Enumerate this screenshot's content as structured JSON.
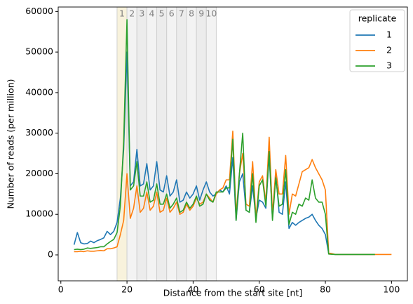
{
  "chart_data": {
    "type": "line",
    "xlabel": "Distance from the start site [nt]",
    "ylabel": "Number of reads (per million)",
    "xlim": [
      -0.8,
      104.8
    ],
    "ylim": [
      -6400,
      61100
    ],
    "xticks": [
      0,
      20,
      40,
      60,
      80,
      100
    ],
    "yticks": [
      0,
      10000,
      20000,
      30000,
      40000,
      50000,
      60000
    ],
    "grid": false,
    "legend": {
      "title": "replicate",
      "loc": "upper right"
    },
    "bands": [
      {
        "label": "1",
        "start": 17,
        "end": 20,
        "color": "#f8f2dc"
      },
      {
        "label": "2",
        "start": 20,
        "end": 23,
        "color": "#f3f3f3"
      },
      {
        "label": "3",
        "start": 23,
        "end": 26,
        "color": "#ececec"
      },
      {
        "label": "4",
        "start": 26,
        "end": 29,
        "color": "#f3f3f3"
      },
      {
        "label": "5",
        "start": 29,
        "end": 32,
        "color": "#ececec"
      },
      {
        "label": "6",
        "start": 32,
        "end": 35,
        "color": "#f3f3f3"
      },
      {
        "label": "7",
        "start": 35,
        "end": 38,
        "color": "#ececec"
      },
      {
        "label": "8",
        "start": 38,
        "end": 41,
        "color": "#f3f3f3"
      },
      {
        "label": "9",
        "start": 41,
        "end": 44,
        "color": "#ececec"
      },
      {
        "label": "10",
        "start": 44,
        "end": 47,
        "color": "#f3f3f3"
      }
    ],
    "x": [
      4,
      5,
      6,
      7,
      8,
      9,
      10,
      11,
      12,
      13,
      14,
      15,
      16,
      17,
      18,
      19,
      20,
      21,
      22,
      23,
      24,
      25,
      26,
      27,
      28,
      29,
      30,
      31,
      32,
      33,
      34,
      35,
      36,
      37,
      38,
      39,
      40,
      41,
      42,
      43,
      44,
      45,
      46,
      47,
      48,
      49,
      50,
      51,
      52,
      53,
      54,
      55,
      56,
      57,
      58,
      59,
      60,
      61,
      62,
      63,
      64,
      65,
      66,
      67,
      68,
      69,
      70,
      71,
      72,
      73,
      74,
      75,
      76,
      77,
      78,
      79,
      80,
      81,
      82,
      83,
      84,
      85,
      86,
      87,
      88,
      89,
      90,
      91,
      92,
      93,
      94,
      95,
      96,
      97,
      98,
      99,
      100
    ],
    "series": [
      {
        "name": "1",
        "color": "#1f77b4",
        "values": [
          2500,
          5500,
          3000,
          2700,
          2800,
          3400,
          3000,
          3500,
          3800,
          4200,
          5800,
          5000,
          5800,
          8000,
          14000,
          26000,
          50000,
          17000,
          18000,
          26000,
          17000,
          17500,
          22500,
          16000,
          17000,
          23000,
          16000,
          15500,
          19500,
          14500,
          15500,
          18500,
          13000,
          13500,
          15500,
          14000,
          15000,
          17000,
          13500,
          16000,
          18000,
          15500,
          14500,
          15000,
          16000,
          15500,
          17000,
          15000,
          24000,
          8500,
          18000,
          20000,
          11000,
          10500,
          17000,
          9000,
          13500,
          13000,
          11500,
          24500,
          9000,
          20000,
          10500,
          10000,
          18000,
          6500,
          8000,
          7300,
          8000,
          8500,
          9000,
          9300,
          10000,
          8500,
          7300,
          6500,
          5000,
          300,
          200,
          100,
          100,
          100,
          100,
          100,
          100,
          100,
          100,
          100,
          100,
          100,
          100,
          100,
          null,
          null,
          null,
          null,
          null
        ]
      },
      {
        "name": "2",
        "color": "#ff7f0e",
        "values": [
          800,
          800,
          900,
          800,
          1000,
          900,
          900,
          1000,
          1100,
          1000,
          1500,
          1500,
          1700,
          2000,
          5000,
          8500,
          20000,
          9000,
          11500,
          17000,
          10500,
          11500,
          15500,
          11000,
          12000,
          15500,
          10500,
          11000,
          14000,
          10500,
          11500,
          13000,
          10000,
          10500,
          12500,
          11000,
          12000,
          14000,
          12500,
          13000,
          15000,
          14000,
          13000,
          15000,
          16000,
          16500,
          18500,
          18500,
          30500,
          10000,
          20000,
          25000,
          12500,
          12000,
          23000,
          9000,
          18000,
          19500,
          13000,
          29000,
          10000,
          21000,
          15000,
          15000,
          24500,
          10000,
          15000,
          14500,
          17500,
          20500,
          21000,
          21500,
          23500,
          21500,
          20000,
          18500,
          16000,
          500,
          300,
          100,
          100,
          100,
          100,
          100,
          100,
          100,
          100,
          100,
          100,
          100,
          100,
          100,
          100,
          100,
          100,
          100,
          100
        ]
      },
      {
        "name": "3",
        "color": "#2ca02c",
        "values": [
          1300,
          1400,
          1300,
          1400,
          1700,
          1600,
          1700,
          1800,
          2000,
          2000,
          2700,
          3300,
          3800,
          5500,
          12000,
          28000,
          58000,
          16000,
          17000,
          23000,
          14500,
          14500,
          18000,
          13000,
          13500,
          17500,
          12500,
          12500,
          15000,
          11500,
          12500,
          14000,
          10500,
          11000,
          13000,
          11500,
          12500,
          14500,
          12000,
          12500,
          15000,
          13500,
          13000,
          15500,
          15500,
          15500,
          16500,
          16500,
          28500,
          8500,
          20000,
          30000,
          11000,
          10500,
          20000,
          8000,
          17000,
          18500,
          12000,
          25500,
          8500,
          19000,
          12000,
          12500,
          21000,
          7500,
          10500,
          10000,
          12500,
          12000,
          14000,
          13500,
          18500,
          14000,
          13000,
          13000,
          10000,
          200,
          150,
          100,
          100,
          100,
          100,
          100,
          100,
          100,
          100,
          100,
          100,
          100,
          100,
          100,
          null,
          null,
          null,
          null,
          null
        ]
      }
    ]
  }
}
